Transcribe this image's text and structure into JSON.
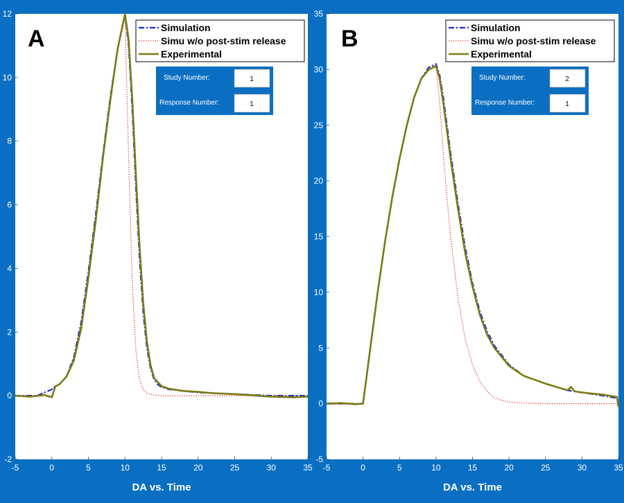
{
  "chart_data": [
    {
      "panel_label": "A",
      "type": "line",
      "xlabel": "DA vs. Time",
      "ylabel": "",
      "title": "",
      "xlim": [
        -5,
        35
      ],
      "ylim": [
        -2,
        12
      ],
      "xticks": [
        -5,
        0,
        5,
        10,
        15,
        20,
        25,
        30,
        35
      ],
      "yticks": [
        -2,
        0,
        2,
        4,
        6,
        8,
        10,
        12
      ],
      "legend": {
        "position": "top-right",
        "entries": [
          "Simulation",
          "Simu w/o post-stim release",
          "Experimental"
        ]
      },
      "info_box": {
        "study_label": "Study Number:",
        "study_value": "1",
        "response_label": "Response Number:",
        "response_value": "1"
      },
      "series": [
        {
          "name": "Simulation",
          "color": "#1e2bd6",
          "style": "dash-dot",
          "x": [
            -5,
            -2,
            0,
            0.5,
            1,
            2,
            3,
            4,
            5,
            6,
            7,
            8,
            9,
            10,
            10.5,
            11,
            11.5,
            12,
            12.5,
            13,
            13.5,
            14,
            14.5,
            15,
            16,
            18,
            20,
            25,
            30,
            35
          ],
          "y": [
            0,
            0,
            0.2,
            0.3,
            0.35,
            0.6,
            1.2,
            2.3,
            3.9,
            5.7,
            7.6,
            9.4,
            10.9,
            12.0,
            11.0,
            9.0,
            6.5,
            4.3,
            2.6,
            1.5,
            0.85,
            0.5,
            0.35,
            0.27,
            0.2,
            0.15,
            0.1,
            0.05,
            0,
            0
          ]
        },
        {
          "name": "Simu w/o post-stim release",
          "color": "#e01818",
          "style": "dotted",
          "x": [
            -5,
            -2,
            0,
            0.5,
            1,
            2,
            3,
            4,
            5,
            6,
            7,
            8,
            9,
            10,
            10.5,
            11,
            11.5,
            12,
            12.5,
            13,
            14,
            15,
            17,
            20,
            25,
            30,
            35
          ],
          "y": [
            0,
            0,
            0.2,
            0.3,
            0.35,
            0.6,
            1.2,
            2.3,
            3.9,
            5.7,
            7.6,
            9.4,
            10.9,
            11.9,
            7.5,
            3.5,
            1.4,
            0.5,
            0.2,
            0.08,
            0.02,
            0,
            0,
            0,
            0,
            0,
            0
          ]
        },
        {
          "name": "Experimental",
          "color": "#7b7a12",
          "style": "solid",
          "x": [
            -5,
            -3,
            -1,
            0,
            0.5,
            1,
            2,
            3,
            4,
            5,
            6,
            7,
            8,
            9,
            10,
            10.5,
            11,
            11.5,
            12,
            12.5,
            13,
            13.5,
            14,
            15,
            16,
            18,
            20,
            22,
            25,
            28,
            30,
            33,
            35
          ],
          "y": [
            0,
            -0.03,
            0.02,
            -0.05,
            0.3,
            0.35,
            0.6,
            1.1,
            2.1,
            3.7,
            5.5,
            7.5,
            9.3,
            10.9,
            12.0,
            11.2,
            9.3,
            6.9,
            4.7,
            2.9,
            1.7,
            0.95,
            0.55,
            0.3,
            0.22,
            0.15,
            0.12,
            0.08,
            0.05,
            0,
            -0.03,
            -0.05,
            -0.03
          ]
        }
      ]
    },
    {
      "panel_label": "B",
      "type": "line",
      "xlabel": "DA vs. Time",
      "ylabel": "",
      "title": "",
      "xlim": [
        -5,
        35
      ],
      "ylim": [
        -5,
        35
      ],
      "xticks": [
        -5,
        0,
        5,
        10,
        15,
        20,
        25,
        30,
        35
      ],
      "yticks": [
        -5,
        0,
        5,
        10,
        15,
        20,
        25,
        30,
        35
      ],
      "legend": {
        "position": "top-right",
        "entries": [
          "Simulation",
          "Simu w/o post-stim release",
          "Experimental"
        ]
      },
      "info_box": {
        "study_label": "Study Number:",
        "study_value": "2",
        "response_label": "Response Number:",
        "response_value": "1"
      },
      "series": [
        {
          "name": "Simulation",
          "color": "#1e2bd6",
          "style": "dash-dot",
          "x": [
            -5,
            -2,
            0,
            0.5,
            1,
            2,
            3,
            4,
            5,
            6,
            7,
            8,
            9,
            10,
            10.5,
            11,
            11.5,
            12,
            13,
            14,
            15,
            16,
            17,
            18,
            20,
            22,
            25,
            28,
            30,
            33,
            34.8
          ],
          "y": [
            0,
            0,
            0,
            2.5,
            5,
            10,
            14.5,
            18.5,
            22,
            25,
            27.5,
            29.2,
            30.2,
            30.5,
            29.5,
            27.5,
            25,
            22.5,
            18,
            14,
            10.8,
            8.3,
            6.5,
            5.2,
            3.5,
            2.5,
            1.8,
            1.2,
            1.0,
            0.7,
            0.5
          ]
        },
        {
          "name": "Simu w/o post-stim release",
          "color": "#e01818",
          "style": "dotted",
          "x": [
            -5,
            -2,
            0,
            0.5,
            1,
            2,
            3,
            4,
            5,
            6,
            7,
            8,
            9,
            10,
            10.5,
            11,
            11.5,
            12,
            13,
            14,
            15,
            16,
            17,
            18,
            19,
            20,
            22,
            25,
            30,
            35
          ],
          "y": [
            0,
            0,
            0,
            2.5,
            5,
            10,
            14.5,
            18.5,
            22,
            25,
            27.5,
            29.2,
            30.2,
            30.4,
            27,
            22.5,
            18.5,
            15,
            9.5,
            5.8,
            3.5,
            2.0,
            1.1,
            0.55,
            0.3,
            0.15,
            0.05,
            0,
            0,
            0
          ]
        },
        {
          "name": "Experimental",
          "color": "#7b7a12",
          "style": "solid",
          "x": [
            -5,
            -3,
            -1,
            0,
            0.5,
            1,
            2,
            3,
            4,
            5,
            6,
            7,
            8,
            9,
            10,
            10.5,
            11,
            11.5,
            12,
            13,
            14,
            15,
            16,
            17,
            18,
            20,
            22,
            25,
            28,
            28.5,
            29,
            30,
            33,
            34.8,
            35
          ],
          "y": [
            0,
            0.05,
            -0.05,
            0,
            2.5,
            5,
            10,
            14.5,
            18.5,
            22,
            25,
            27.5,
            29.2,
            30.0,
            30.3,
            29.2,
            27,
            24.5,
            22,
            17.5,
            13.5,
            10.5,
            8,
            6.2,
            5.0,
            3.4,
            2.5,
            1.8,
            1.2,
            1.5,
            1.1,
            1.0,
            0.8,
            0.6,
            -0.3
          ]
        }
      ]
    }
  ]
}
